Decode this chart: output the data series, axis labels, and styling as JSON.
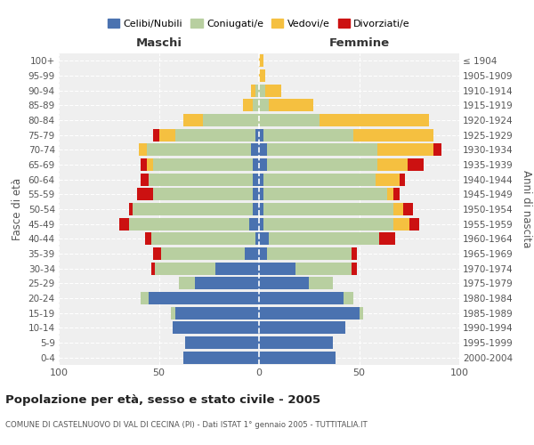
{
  "age_groups": [
    "0-4",
    "5-9",
    "10-14",
    "15-19",
    "20-24",
    "25-29",
    "30-34",
    "35-39",
    "40-44",
    "45-49",
    "50-54",
    "55-59",
    "60-64",
    "65-69",
    "70-74",
    "75-79",
    "80-84",
    "85-89",
    "90-94",
    "95-99",
    "100+"
  ],
  "birth_years": [
    "2000-2004",
    "1995-1999",
    "1990-1994",
    "1985-1989",
    "1980-1984",
    "1975-1979",
    "1970-1974",
    "1965-1969",
    "1960-1964",
    "1955-1959",
    "1950-1954",
    "1945-1949",
    "1940-1944",
    "1935-1939",
    "1930-1934",
    "1925-1929",
    "1920-1924",
    "1915-1919",
    "1910-1914",
    "1905-1909",
    "≤ 1904"
  ],
  "colors": {
    "celibi": "#4a72b0",
    "coniugati": "#b8cfa0",
    "vedovi": "#f5c040",
    "divorziati": "#cc1111"
  },
  "males": {
    "celibi": [
      38,
      37,
      43,
      42,
      55,
      32,
      22,
      7,
      2,
      5,
      3,
      3,
      3,
      3,
      4,
      2,
      0,
      0,
      0,
      0,
      0
    ],
    "coniugati": [
      0,
      0,
      0,
      2,
      4,
      8,
      30,
      42,
      52,
      60,
      60,
      50,
      52,
      50,
      52,
      40,
      28,
      3,
      2,
      0,
      0
    ],
    "vedovi": [
      0,
      0,
      0,
      0,
      0,
      0,
      0,
      0,
      0,
      0,
      0,
      0,
      0,
      3,
      4,
      8,
      10,
      5,
      2,
      0,
      0
    ],
    "divorziati": [
      0,
      0,
      0,
      0,
      0,
      0,
      2,
      4,
      3,
      5,
      2,
      8,
      4,
      3,
      0,
      3,
      0,
      0,
      0,
      0,
      0
    ]
  },
  "females": {
    "celibi": [
      38,
      37,
      43,
      50,
      42,
      25,
      18,
      4,
      5,
      2,
      2,
      2,
      2,
      4,
      4,
      2,
      0,
      0,
      0,
      0,
      0
    ],
    "coniugati": [
      0,
      0,
      0,
      2,
      5,
      12,
      28,
      42,
      55,
      65,
      65,
      62,
      56,
      55,
      55,
      45,
      30,
      5,
      3,
      0,
      0
    ],
    "vedovi": [
      0,
      0,
      0,
      0,
      0,
      0,
      0,
      0,
      0,
      8,
      5,
      3,
      12,
      15,
      28,
      40,
      55,
      22,
      8,
      3,
      2
    ],
    "divorziati": [
      0,
      0,
      0,
      0,
      0,
      0,
      3,
      3,
      8,
      5,
      5,
      3,
      3,
      8,
      4,
      0,
      0,
      0,
      0,
      0,
      0
    ]
  },
  "title": "Popolazione per età, sesso e stato civile - 2005",
  "subtitle": "COMUNE DI CASTELNUOVO DI VAL DI CECINA (PI) - Dati ISTAT 1° gennaio 2005 - TUTTITALIA.IT",
  "xlabel_left": "Maschi",
  "xlabel_right": "Femmine",
  "ylabel_left": "Fasce di età",
  "ylabel_right": "Anni di nascita",
  "xlim": 100,
  "legend_labels": [
    "Celibi/Nubili",
    "Coniugati/e",
    "Vedovi/e",
    "Divorziati/e"
  ],
  "background_color": "#ffffff",
  "grid_color": "#cccccc"
}
